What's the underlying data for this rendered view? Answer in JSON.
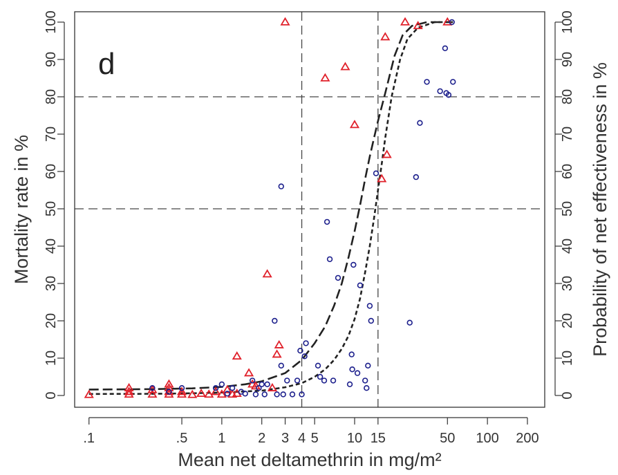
{
  "chart_data": {
    "type": "scatter",
    "panel_label": "d",
    "xlabel": "Mean net deltamethrin in mg/m²",
    "ylabel": "Mortality rate in %",
    "ylabel_right": "Probability of net effectiveness in %",
    "x_scale": "log",
    "xlim": [
      0.1,
      200
    ],
    "ylim": [
      0,
      100
    ],
    "x_ticks": [
      0.1,
      0.5,
      1,
      2,
      3,
      4,
      5,
      10,
      15,
      50,
      100,
      200
    ],
    "x_tick_labels": [
      ".1",
      ".5",
      "1",
      "2",
      "3",
      "4",
      "5",
      "10",
      "15",
      "50",
      "100",
      "200"
    ],
    "y_ticks": [
      0,
      10,
      20,
      30,
      40,
      50,
      60,
      70,
      80,
      90,
      100
    ],
    "y_tick_labels": [
      "0",
      "10",
      "20",
      "30",
      "40",
      "50",
      "60",
      "70",
      "80",
      "90",
      "100"
    ],
    "y_ticks_right": [
      0,
      10,
      20,
      30,
      40,
      50,
      60,
      70,
      80,
      90,
      100
    ],
    "y_tick_labels_right": [
      "0",
      "10",
      "20",
      "30",
      "40",
      "50",
      "60",
      "70",
      "80",
      "90",
      "100"
    ],
    "reference_lines": {
      "x": [
        4,
        15
      ],
      "y": [
        50,
        80
      ]
    },
    "colors": {
      "triangles": "#e0202a",
      "circles": "#1c1f8c",
      "curves": "#222222",
      "reference": "#444444"
    },
    "series": [
      {
        "marker": "triangle",
        "points": [
          [
            0.1,
            0.2
          ],
          [
            0.2,
            0.3
          ],
          [
            0.2,
            1.0
          ],
          [
            0.2,
            2.0
          ],
          [
            0.3,
            0.3
          ],
          [
            0.3,
            1.5
          ],
          [
            0.4,
            0.3
          ],
          [
            0.4,
            1.0
          ],
          [
            0.4,
            2.0
          ],
          [
            0.4,
            3.0
          ],
          [
            0.5,
            0.3
          ],
          [
            0.5,
            1.0
          ],
          [
            0.6,
            0.2
          ],
          [
            0.7,
            0.5
          ],
          [
            0.8,
            0.3
          ],
          [
            0.9,
            1.0
          ],
          [
            1.0,
            0.3
          ],
          [
            1.1,
            1.5
          ],
          [
            1.2,
            0.3
          ],
          [
            1.3,
            10.5
          ],
          [
            1.3,
            0.5
          ],
          [
            1.6,
            6.0
          ],
          [
            1.7,
            3.0
          ],
          [
            1.8,
            2.5
          ],
          [
            2.2,
            32.5
          ],
          [
            2.4,
            2.0
          ],
          [
            2.6,
            11.0
          ],
          [
            2.7,
            13.5
          ],
          [
            3.0,
            100.0
          ],
          [
            6.0,
            85.0
          ],
          [
            8.5,
            88.0
          ],
          [
            10.0,
            72.5
          ],
          [
            16.0,
            58.0
          ],
          [
            17.0,
            96.0
          ],
          [
            17.5,
            64.5
          ],
          [
            24.0,
            100.0
          ],
          [
            30.0,
            99.0
          ],
          [
            50.0,
            100.0
          ]
        ]
      },
      {
        "marker": "circle",
        "points": [
          [
            0.3,
            2.0
          ],
          [
            0.4,
            1.0
          ],
          [
            0.5,
            2.0
          ],
          [
            0.9,
            2.0
          ],
          [
            1.0,
            3.0
          ],
          [
            1.1,
            0.5
          ],
          [
            1.2,
            2.0
          ],
          [
            1.4,
            1.0
          ],
          [
            1.5,
            0.5
          ],
          [
            1.7,
            4.0
          ],
          [
            1.8,
            0.3
          ],
          [
            1.9,
            2.0
          ],
          [
            2.0,
            3.0
          ],
          [
            2.1,
            0.3
          ],
          [
            2.2,
            3.0
          ],
          [
            2.5,
            20.0
          ],
          [
            2.6,
            0.3
          ],
          [
            2.8,
            56.0
          ],
          [
            2.8,
            8.0
          ],
          [
            2.9,
            0.3
          ],
          [
            3.1,
            4.0
          ],
          [
            3.4,
            0.3
          ],
          [
            3.7,
            4.0
          ],
          [
            3.9,
            12.0
          ],
          [
            4.0,
            0.3
          ],
          [
            4.2,
            10.5
          ],
          [
            4.3,
            14.0
          ],
          [
            5.3,
            8.0
          ],
          [
            5.5,
            5.0
          ],
          [
            5.9,
            4.0
          ],
          [
            6.2,
            46.5
          ],
          [
            6.5,
            36.5
          ],
          [
            6.9,
            4.0
          ],
          [
            7.5,
            31.5
          ],
          [
            9.2,
            3.0
          ],
          [
            9.5,
            11.0
          ],
          [
            9.6,
            7.0
          ],
          [
            9.8,
            35.0
          ],
          [
            10.5,
            6.0
          ],
          [
            11.0,
            29.5
          ],
          [
            12.0,
            4.0
          ],
          [
            12.3,
            2.0
          ],
          [
            12.6,
            8.0
          ],
          [
            13.0,
            24.0
          ],
          [
            13.3,
            20.0
          ],
          [
            14.5,
            59.5
          ],
          [
            26.0,
            19.5
          ],
          [
            29.0,
            58.5
          ],
          [
            31.0,
            73.0
          ],
          [
            35.0,
            84.0
          ],
          [
            44.0,
            81.5
          ],
          [
            48.0,
            93.0
          ],
          [
            49.0,
            81.0
          ],
          [
            51.0,
            80.5
          ],
          [
            54.0,
            100.0
          ],
          [
            55.0,
            84.0
          ]
        ]
      }
    ],
    "curves": [
      {
        "style": "long-dash",
        "points": [
          [
            0.1,
            1.6
          ],
          [
            0.3,
            1.7
          ],
          [
            0.6,
            1.9
          ],
          [
            1.0,
            2.3
          ],
          [
            1.5,
            3.0
          ],
          [
            2.0,
            3.8
          ],
          [
            3.0,
            6.0
          ],
          [
            4.0,
            9.5
          ],
          [
            5.0,
            14.0
          ],
          [
            6.0,
            18.5
          ],
          [
            7.0,
            24.0
          ],
          [
            8.0,
            30.0
          ],
          [
            9.0,
            37.0
          ],
          [
            10.0,
            44.0
          ],
          [
            11.0,
            51.0
          ],
          [
            12.0,
            58.0
          ],
          [
            13.0,
            64.0
          ],
          [
            14.0,
            69.0
          ],
          [
            15.0,
            73.5
          ],
          [
            17.0,
            81.0
          ],
          [
            20.0,
            91.0
          ],
          [
            23.0,
            96.5
          ],
          [
            27.0,
            99.0
          ],
          [
            35.0,
            100.0
          ],
          [
            55.0,
            100.0
          ]
        ]
      },
      {
        "style": "short-dash",
        "points": [
          [
            0.1,
            0.4
          ],
          [
            0.3,
            0.45
          ],
          [
            0.6,
            0.6
          ],
          [
            1.0,
            0.8
          ],
          [
            2.0,
            1.3
          ],
          [
            3.0,
            2.2
          ],
          [
            4.0,
            3.3
          ],
          [
            5.0,
            5.0
          ],
          [
            6.0,
            7.0
          ],
          [
            7.0,
            9.5
          ],
          [
            8.0,
            12.5
          ],
          [
            9.0,
            16.0
          ],
          [
            10.0,
            20.5
          ],
          [
            11.0,
            26.0
          ],
          [
            12.0,
            33.0
          ],
          [
            13.0,
            40.0
          ],
          [
            14.0,
            47.5
          ],
          [
            15.0,
            55.0
          ],
          [
            16.0,
            62.0
          ],
          [
            17.0,
            69.0
          ],
          [
            19.0,
            80.0
          ],
          [
            22.0,
            90.0
          ],
          [
            25.0,
            95.5
          ],
          [
            30.0,
            98.5
          ],
          [
            40.0,
            100.0
          ],
          [
            55.0,
            100.0
          ]
        ]
      }
    ]
  }
}
